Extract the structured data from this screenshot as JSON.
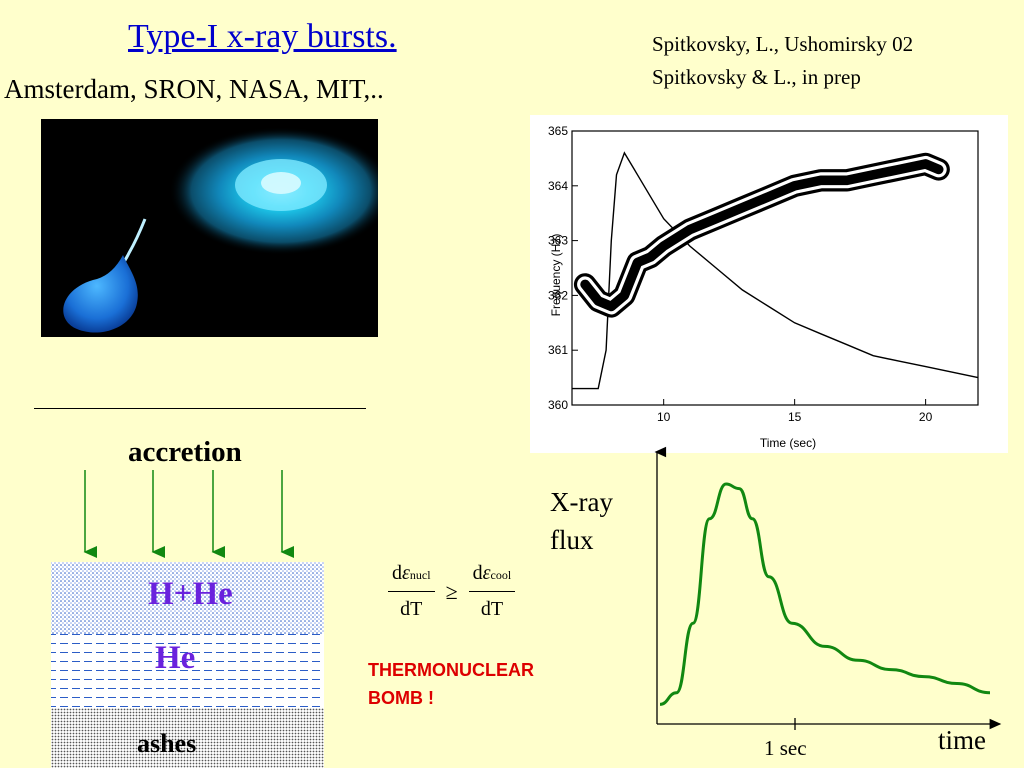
{
  "slide": {
    "title": "Type-I x-ray bursts.",
    "subtitle": "Amsterdam, SRON, NASA, MIT,..",
    "references": [
      "Spitkovsky, L., Ushomirsky 02",
      "Spitkovsky & L., in prep"
    ]
  },
  "accretion_diagram": {
    "label": "accretion",
    "layers": [
      {
        "label": "H+He",
        "color": "#6a22dd"
      },
      {
        "label": "He",
        "color": "#6a22dd"
      },
      {
        "label": "ashes",
        "color": "#000000"
      }
    ],
    "arrow_color": "#118811"
  },
  "formula": {
    "num_left_prefix": "d",
    "num_left_symbol": "ε",
    "num_left_sub": "nucl",
    "den_left": "dT",
    "operator": "≥",
    "num_right_prefix": "d",
    "num_right_symbol": "ε",
    "num_right_sub": "cool",
    "den_right": "dT"
  },
  "bomb_text": [
    "THERMONUCLEAR",
    "BOMB !"
  ],
  "frequency_plot": {
    "xlabel": "Time (sec)",
    "ylabel": "Frequency (Hz)",
    "xticks": [
      "10",
      "15",
      "20"
    ],
    "yticks": [
      "360",
      "361",
      "362",
      "363",
      "364",
      "365"
    ],
    "xlim": [
      6.5,
      22
    ],
    "ylim": [
      360,
      365
    ]
  },
  "light_curve": {
    "ylabel_lines": [
      "X-ray",
      "flux"
    ],
    "xlabel": "time",
    "tick_label": "1 sec",
    "curve_color": "#118811"
  },
  "chart_data": [
    {
      "type": "line",
      "title": "",
      "xlabel": "Time (sec)",
      "ylabel": "Frequency (Hz)",
      "xlim": [
        6.5,
        22
      ],
      "ylim": [
        360,
        365
      ],
      "xticks": [
        10,
        15,
        20
      ],
      "yticks": [
        360,
        361,
        362,
        363,
        364,
        365
      ],
      "series": [
        {
          "x": [
            6.5,
            7.5,
            7.8,
            8.0,
            8.2,
            8.5,
            9.0,
            9.5,
            10.0,
            11.0,
            12.0,
            13.0,
            14.0,
            15.0,
            16.0,
            17.0,
            18.0,
            19.0,
            20.0,
            21.0,
            22.0
          ],
          "y": [
            360.3,
            360.3,
            361.0,
            363.0,
            364.2,
            364.6,
            364.2,
            363.8,
            363.4,
            362.9,
            362.5,
            362.1,
            361.8,
            361.5,
            361.3,
            361.1,
            360.9,
            360.8,
            360.7,
            360.6,
            360.5
          ]
        },
        {
          "x": [
            7.0,
            7.5,
            8.0,
            8.5,
            9.0,
            9.5,
            10.0,
            11.0,
            12.0,
            13.0,
            14.0,
            15.0,
            16.0,
            17.0,
            18.0,
            19.0,
            20.0,
            20.5
          ],
          "y": [
            362.2,
            361.9,
            361.8,
            362.0,
            362.6,
            362.7,
            362.9,
            363.2,
            363.4,
            363.6,
            363.8,
            364.0,
            364.1,
            364.1,
            364.2,
            364.3,
            364.4,
            364.3
          ]
        }
      ]
    },
    {
      "type": "line",
      "title": "",
      "xlabel": "time",
      "ylabel": "X-ray flux",
      "series": [
        {
          "x": [
            0,
            0.5,
            1.0,
            1.5,
            2.0,
            2.4,
            2.8,
            3.3,
            4.0,
            5.0,
            6.0,
            7.0,
            8.0,
            9.0,
            10.0
          ],
          "y": [
            0.05,
            0.1,
            0.4,
            0.85,
            1.0,
            0.98,
            0.85,
            0.6,
            0.4,
            0.3,
            0.24,
            0.2,
            0.17,
            0.14,
            0.1
          ]
        }
      ]
    }
  ]
}
